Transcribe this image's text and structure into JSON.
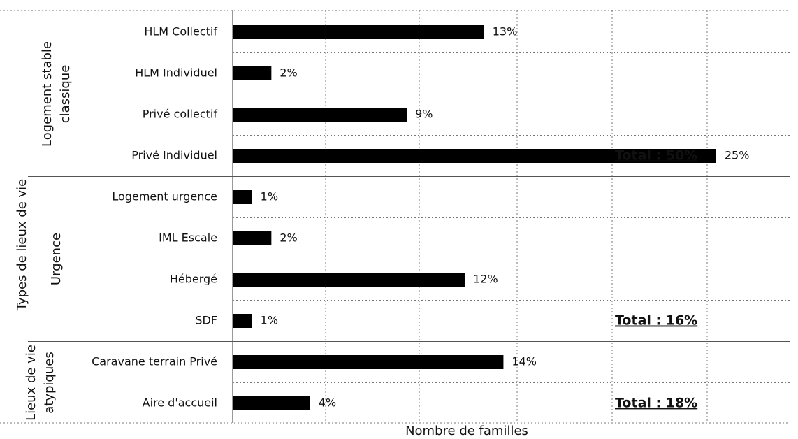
{
  "chart_data": {
    "type": "bar",
    "y_axis_label": "Types de lieux de vie",
    "x_axis_label": "Nombre de familles",
    "color": "#000000",
    "xlim": [
      0,
      28.8
    ],
    "groups": [
      {
        "label_lines": [
          "Logement stable",
          "classique"
        ],
        "total": "Total : 50%",
        "categories": [
          "HLM Collectif",
          "HLM Individuel",
          "Privé collectif",
          "Privé Individuel"
        ],
        "values": [
          13,
          2,
          9,
          25
        ],
        "value_labels": [
          "13%",
          "2%",
          "9%",
          "25%"
        ]
      },
      {
        "label_lines": [
          "Urgence"
        ],
        "total": "Total : 16%",
        "categories": [
          "Logement urgence",
          "IML Escale",
          "Hébergé",
          "SDF"
        ],
        "values": [
          1,
          2,
          12,
          1
        ],
        "value_labels": [
          "1%",
          "2%",
          "12%",
          "1%"
        ]
      },
      {
        "label_lines": [
          "Lieux de vie",
          "atypiques"
        ],
        "total": "Total : 18%",
        "categories": [
          "Caravane terrain Privé",
          "Aire d'accueil"
        ],
        "values": [
          14,
          4
        ],
        "value_labels": [
          "14%",
          "4%"
        ]
      }
    ]
  }
}
